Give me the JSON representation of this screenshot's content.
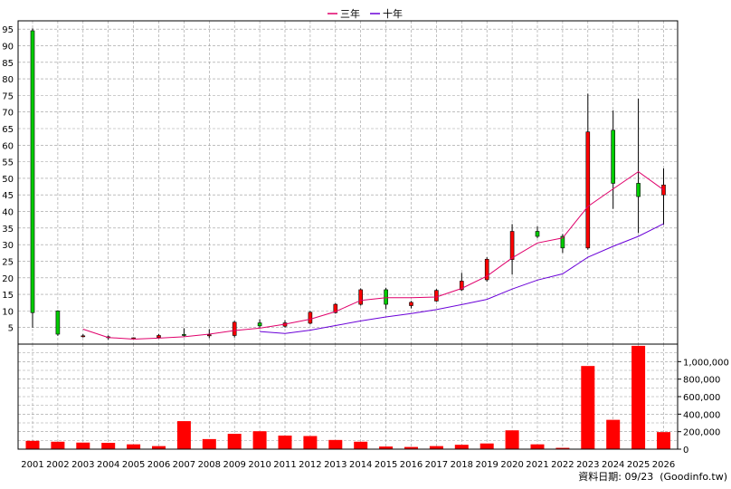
{
  "legend": [
    {
      "label": "三年",
      "color": "#e0006b"
    },
    {
      "label": "十年",
      "color": "#6a00d8"
    }
  ],
  "footer_text": "資料日期: 09/23  (Goodinfo.tw)",
  "colors": {
    "up": "#ff0000",
    "down": "#00cc00",
    "volume": "#ff0000",
    "grid": "#999999",
    "wick": "#000000"
  },
  "chart_data": [
    {
      "type": "candlestick",
      "title": "",
      "categories": [
        "2001",
        "2002",
        "2003",
        "2004",
        "2005",
        "2006",
        "2007",
        "2008",
        "2009",
        "2010",
        "2011",
        "2012",
        "2013",
        "2014",
        "2015",
        "2016",
        "2017",
        "2018",
        "2019",
        "2020",
        "2021",
        "2022",
        "2023",
        "2024",
        "2025",
        "2026"
      ],
      "ylim": [
        0,
        97.5
      ],
      "y_ticks": [
        5,
        10,
        15,
        20,
        25,
        30,
        35,
        40,
        45,
        50,
        55,
        60,
        65,
        70,
        75,
        80,
        85,
        90,
        95
      ],
      "grid": true,
      "legend_position": "top-center",
      "ohlc": [
        {
          "open": 94.5,
          "high": 95.2,
          "low": 5.0,
          "close": 9.5
        },
        {
          "open": 10.0,
          "high": 10.2,
          "low": 2.5,
          "close": 3.0
        },
        {
          "open": 2.5,
          "high": 3.0,
          "low": 2.0,
          "close": 2.5
        },
        {
          "open": 2.0,
          "high": 2.6,
          "low": 1.3,
          "close": 2.2
        },
        {
          "open": 1.8,
          "high": 2.0,
          "low": 1.5,
          "close": 1.9
        },
        {
          "open": 2.0,
          "high": 3.0,
          "low": 1.6,
          "close": 2.6
        },
        {
          "open": 2.9,
          "high": 4.8,
          "low": 2.2,
          "close": 2.6
        },
        {
          "open": 2.5,
          "high": 4.5,
          "low": 1.8,
          "close": 2.8
        },
        {
          "open": 2.6,
          "high": 7.0,
          "low": 2.0,
          "close": 6.6
        },
        {
          "open": 6.4,
          "high": 7.5,
          "low": 5.0,
          "close": 5.5
        },
        {
          "open": 5.4,
          "high": 7.2,
          "low": 5.0,
          "close": 6.4
        },
        {
          "open": 6.3,
          "high": 10.0,
          "low": 6.0,
          "close": 9.6
        },
        {
          "open": 9.5,
          "high": 12.3,
          "low": 9.2,
          "close": 12.0
        },
        {
          "open": 12.0,
          "high": 16.8,
          "low": 11.6,
          "close": 16.4
        },
        {
          "open": 16.4,
          "high": 17.0,
          "low": 10.5,
          "close": 12.0
        },
        {
          "open": 11.6,
          "high": 13.0,
          "low": 10.8,
          "close": 12.6
        },
        {
          "open": 13.0,
          "high": 16.6,
          "low": 12.8,
          "close": 16.2
        },
        {
          "open": 16.4,
          "high": 21.5,
          "low": 16.0,
          "close": 19.0
        },
        {
          "open": 19.4,
          "high": 26.2,
          "low": 18.8,
          "close": 25.6
        },
        {
          "open": 25.5,
          "high": 36.2,
          "low": 21.0,
          "close": 34.0
        },
        {
          "open": 34.0,
          "high": 35.5,
          "low": 32.0,
          "close": 32.5
        },
        {
          "open": 32.5,
          "high": 33.2,
          "low": 27.5,
          "close": 29.0
        },
        {
          "open": 29.0,
          "high": 75.5,
          "low": 28.5,
          "close": 64.0
        },
        {
          "open": 64.5,
          "high": 70.5,
          "low": 40.8,
          "close": 48.5
        },
        {
          "open": 48.5,
          "high": 74.0,
          "low": 33.5,
          "close": 44.5
        },
        {
          "open": 45.0,
          "high": 53.0,
          "low": 36.0,
          "close": 48.0
        }
      ],
      "series": [
        {
          "name": "三年",
          "values": [
            null,
            null,
            4.5,
            2.0,
            1.5,
            1.8,
            2.2,
            3.0,
            4.1,
            4.8,
            6.0,
            7.5,
            9.8,
            13.2,
            14.0,
            14.0,
            14.2,
            16.8,
            20.5,
            26.0,
            30.5,
            32.0,
            41.5,
            46.8,
            52.0,
            46.5
          ]
        },
        {
          "name": "十年",
          "values": [
            null,
            null,
            null,
            null,
            null,
            null,
            null,
            null,
            null,
            3.8,
            3.2,
            4.2,
            5.6,
            7.0,
            8.2,
            9.2,
            10.4,
            11.9,
            13.5,
            16.6,
            19.3,
            21.2,
            26.2,
            29.5,
            32.5,
            36.3
          ]
        }
      ]
    },
    {
      "type": "bar",
      "title": "",
      "categories": [
        "2001",
        "2002",
        "2003",
        "2004",
        "2005",
        "2006",
        "2007",
        "2008",
        "2009",
        "2010",
        "2011",
        "2012",
        "2013",
        "2014",
        "2015",
        "2016",
        "2017",
        "2018",
        "2019",
        "2020",
        "2021",
        "2022",
        "2023",
        "2024",
        "2025",
        "2026"
      ],
      "values": [
        95000,
        85000,
        75000,
        72000,
        55000,
        35000,
        320000,
        115000,
        175000,
        205000,
        155000,
        150000,
        105000,
        85000,
        30000,
        25000,
        35000,
        50000,
        65000,
        215000,
        55000,
        15000,
        950000,
        335000,
        1180000,
        195000
      ],
      "ylim": [
        0,
        1200000
      ],
      "y_ticks": [
        {
          "value": 0,
          "label": "0"
        },
        {
          "value": 200000,
          "label": "200,000"
        },
        {
          "value": 400000,
          "label": "400,000"
        },
        {
          "value": 600000,
          "label": "600,000"
        },
        {
          "value": 800000,
          "label": "800,000"
        },
        {
          "value": 1000000,
          "label": "1,000,000"
        }
      ],
      "grid": true
    }
  ]
}
